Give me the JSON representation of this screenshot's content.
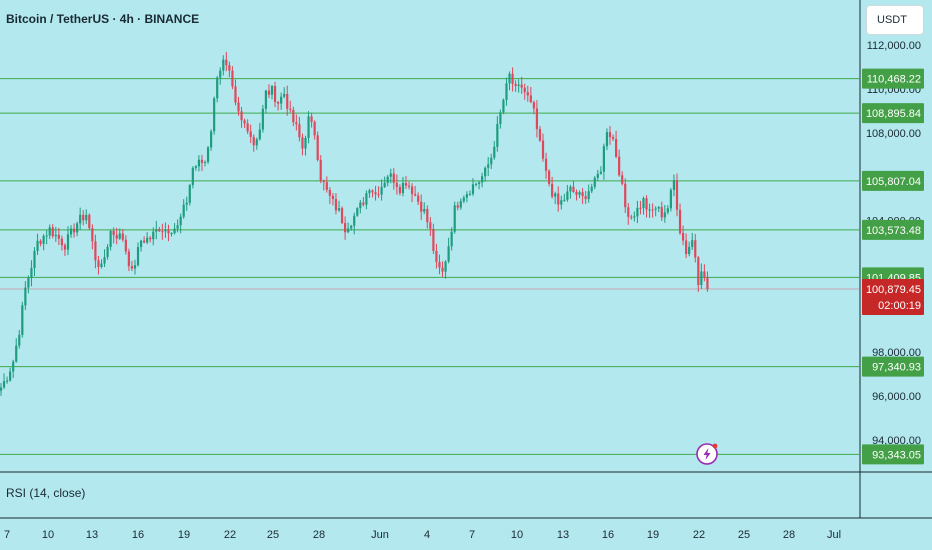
{
  "header": {
    "title": "Bitcoin / TetherUS · 4h · BINANCE",
    "currency_button": "USDT"
  },
  "indicator": {
    "label": "RSI (14, close)"
  },
  "colors": {
    "background": "#b3e8ee",
    "up": "#1f9c7f",
    "down": "#e0475b",
    "level_line": "#3daa4a",
    "level_badge": "#43a047",
    "price_badge": "#c62828"
  },
  "icons": {
    "flash": "flash-icon"
  },
  "chart_data": {
    "type": "candlestick",
    "ylim": [
      92500,
      112500
    ],
    "y_ticks": [
      {
        "value": 112000,
        "label": "112,000.00"
      },
      {
        "value": 110000,
        "label": "110,000.00"
      },
      {
        "value": 108000,
        "label": "108,000.00"
      },
      {
        "value": 104000,
        "label": "104,000.00"
      },
      {
        "value": 98000,
        "label": "98,000.00"
      },
      {
        "value": 96000,
        "label": "96,000.00"
      },
      {
        "value": 94000,
        "label": "94,000.00"
      }
    ],
    "x_ticks": [
      "7",
      "10",
      "13",
      "16",
      "19",
      "22",
      "25",
      "28",
      "Jun",
      "4",
      "7",
      "10",
      "13",
      "16",
      "19",
      "22",
      "25",
      "28",
      "Jul"
    ],
    "levels": [
      {
        "value": 110468.22,
        "label": "110,468.22"
      },
      {
        "value": 108895.84,
        "label": "108,895.84"
      },
      {
        "value": 105807.04,
        "label": "105,807.04"
      },
      {
        "value": 103573.48,
        "label": "103,573.48"
      },
      {
        "value": 101409.85,
        "label": "101,409.85"
      },
      {
        "value": 97340.93,
        "label": "97,340.93"
      },
      {
        "value": 93343.05,
        "label": "93,343.05"
      }
    ],
    "last_price": {
      "value": 100879.45,
      "label": "100,879.45",
      "countdown": "02:00:19"
    },
    "close_path": [
      {
        "c": 0,
        "p": 96400
      },
      {
        "c": 2,
        "p": 96900
      },
      {
        "c": 4,
        "p": 97600
      },
      {
        "c": 6,
        "p": 99000
      },
      {
        "c": 8,
        "p": 100900
      },
      {
        "c": 12,
        "p": 103000
      },
      {
        "c": 16,
        "p": 103600
      },
      {
        "c": 21,
        "p": 102900
      },
      {
        "c": 25,
        "p": 103900
      },
      {
        "c": 28,
        "p": 104300
      },
      {
        "c": 31,
        "p": 102300
      },
      {
        "c": 33,
        "p": 101800
      },
      {
        "c": 36,
        "p": 103500
      },
      {
        "c": 40,
        "p": 103200
      },
      {
        "c": 43,
        "p": 101600
      },
      {
        "c": 46,
        "p": 103100
      },
      {
        "c": 49,
        "p": 103200
      },
      {
        "c": 52,
        "p": 103700
      },
      {
        "c": 54,
        "p": 103600
      },
      {
        "c": 58,
        "p": 103700
      },
      {
        "c": 61,
        "p": 104900
      },
      {
        "c": 63,
        "p": 106400
      },
      {
        "c": 65,
        "p": 106600
      },
      {
        "c": 67,
        "p": 106700
      },
      {
        "c": 69,
        "p": 108200
      },
      {
        "c": 71,
        "p": 110700
      },
      {
        "c": 73,
        "p": 111200
      },
      {
        "c": 75,
        "p": 110600
      },
      {
        "c": 77,
        "p": 109200
      },
      {
        "c": 79,
        "p": 108500
      },
      {
        "c": 81,
        "p": 108300
      },
      {
        "c": 83,
        "p": 107500
      },
      {
        "c": 85,
        "p": 108200
      },
      {
        "c": 87,
        "p": 109800
      },
      {
        "c": 89,
        "p": 109900
      },
      {
        "c": 91,
        "p": 109400
      },
      {
        "c": 93,
        "p": 109800
      },
      {
        "c": 95,
        "p": 108800
      },
      {
        "c": 97,
        "p": 108200
      },
      {
        "c": 99,
        "p": 107300
      },
      {
        "c": 101,
        "p": 108600
      },
      {
        "c": 103,
        "p": 108000
      },
      {
        "c": 105,
        "p": 106000
      },
      {
        "c": 107,
        "p": 105300
      },
      {
        "c": 109,
        "p": 104800
      },
      {
        "c": 111,
        "p": 104400
      },
      {
        "c": 113,
        "p": 103700
      },
      {
        "c": 115,
        "p": 104000
      },
      {
        "c": 117,
        "p": 104400
      },
      {
        "c": 119,
        "p": 104900
      },
      {
        "c": 121,
        "p": 105600
      },
      {
        "c": 123,
        "p": 105200
      },
      {
        "c": 125,
        "p": 105600
      },
      {
        "c": 127,
        "p": 106100
      },
      {
        "c": 129,
        "p": 105900
      },
      {
        "c": 131,
        "p": 105500
      },
      {
        "c": 133,
        "p": 105800
      },
      {
        "c": 135,
        "p": 105400
      },
      {
        "c": 137,
        "p": 104900
      },
      {
        "c": 139,
        "p": 104400
      },
      {
        "c": 141,
        "p": 103500
      },
      {
        "c": 143,
        "p": 101900
      },
      {
        "c": 145,
        "p": 101600
      },
      {
        "c": 147,
        "p": 102900
      },
      {
        "c": 149,
        "p": 104500
      },
      {
        "c": 151,
        "p": 105100
      },
      {
        "c": 153,
        "p": 105300
      },
      {
        "c": 155,
        "p": 105600
      },
      {
        "c": 157,
        "p": 105800
      },
      {
        "c": 159,
        "p": 106200
      },
      {
        "c": 161,
        "p": 106900
      },
      {
        "c": 163,
        "p": 108200
      },
      {
        "c": 165,
        "p": 109500
      },
      {
        "c": 167,
        "p": 110600
      },
      {
        "c": 169,
        "p": 109900
      },
      {
        "c": 171,
        "p": 110100
      },
      {
        "c": 173,
        "p": 109600
      },
      {
        "c": 175,
        "p": 108900
      },
      {
        "c": 177,
        "p": 107400
      },
      {
        "c": 179,
        "p": 106100
      },
      {
        "c": 181,
        "p": 105300
      },
      {
        "c": 183,
        "p": 104700
      },
      {
        "c": 185,
        "p": 105000
      },
      {
        "c": 187,
        "p": 105400
      },
      {
        "c": 189,
        "p": 105200
      },
      {
        "c": 191,
        "p": 105000
      },
      {
        "c": 193,
        "p": 105400
      },
      {
        "c": 195,
        "p": 105700
      },
      {
        "c": 197,
        "p": 106400
      },
      {
        "c": 199,
        "p": 108200
      },
      {
        "c": 201,
        "p": 107700
      },
      {
        "c": 203,
        "p": 106300
      },
      {
        "c": 205,
        "p": 104600
      },
      {
        "c": 207,
        "p": 104200
      },
      {
        "c": 209,
        "p": 104500
      },
      {
        "c": 211,
        "p": 104900
      },
      {
        "c": 213,
        "p": 104300
      },
      {
        "c": 215,
        "p": 104600
      },
      {
        "c": 217,
        "p": 104300
      },
      {
        "c": 219,
        "p": 104600
      },
      {
        "c": 221,
        "p": 105800
      },
      {
        "c": 223,
        "p": 103600
      },
      {
        "c": 225,
        "p": 102600
      },
      {
        "c": 227,
        "p": 103100
      },
      {
        "c": 228,
        "p": 102400
      },
      {
        "c": 229,
        "p": 101300
      },
      {
        "c": 230,
        "p": 101900
      },
      {
        "c": 231,
        "p": 101300
      },
      {
        "c": 232,
        "p": 100880
      }
    ]
  }
}
